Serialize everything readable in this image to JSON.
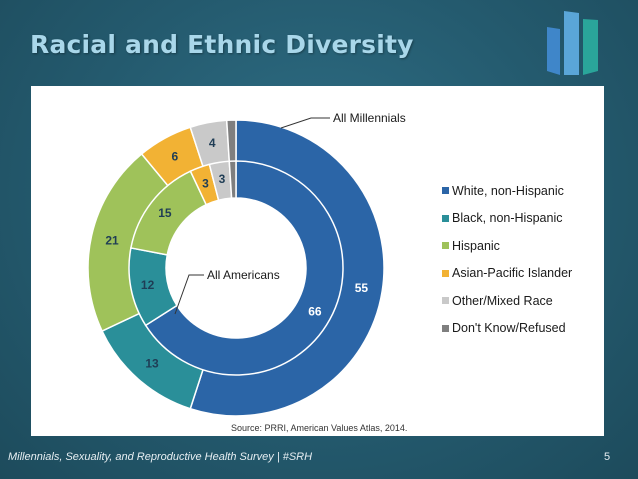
{
  "title": "Racial and Ethnic Diversity",
  "footer": "Millennials, Sexuality, and Reproductive Health Survey | #SRH",
  "page_number": "5",
  "source": "Source: PRRI, American Values Atlas, 2014.",
  "logo_icon": "bar-chart-logo-icon",
  "chart_data": {
    "type": "pie",
    "subtype": "nested-donut",
    "categories": [
      "White, non-Hispanic",
      "Black, non-Hispanic",
      "Hispanic",
      "Asian-Pacific Islander",
      "Other/Mixed Race",
      "Don't Know/Refused"
    ],
    "colors": [
      "#2b65a7",
      "#2a8f99",
      "#9fc25a",
      "#f2b234",
      "#c9c9c9",
      "#7f7f7f"
    ],
    "series": [
      {
        "name": "All Millennials",
        "ring": "outer",
        "values": [
          55,
          13,
          21,
          6,
          4,
          1
        ]
      },
      {
        "name": "All Americans",
        "ring": "inner",
        "values": [
          66,
          12,
          15,
          3,
          3,
          1
        ]
      }
    ],
    "legend_position": "right"
  }
}
